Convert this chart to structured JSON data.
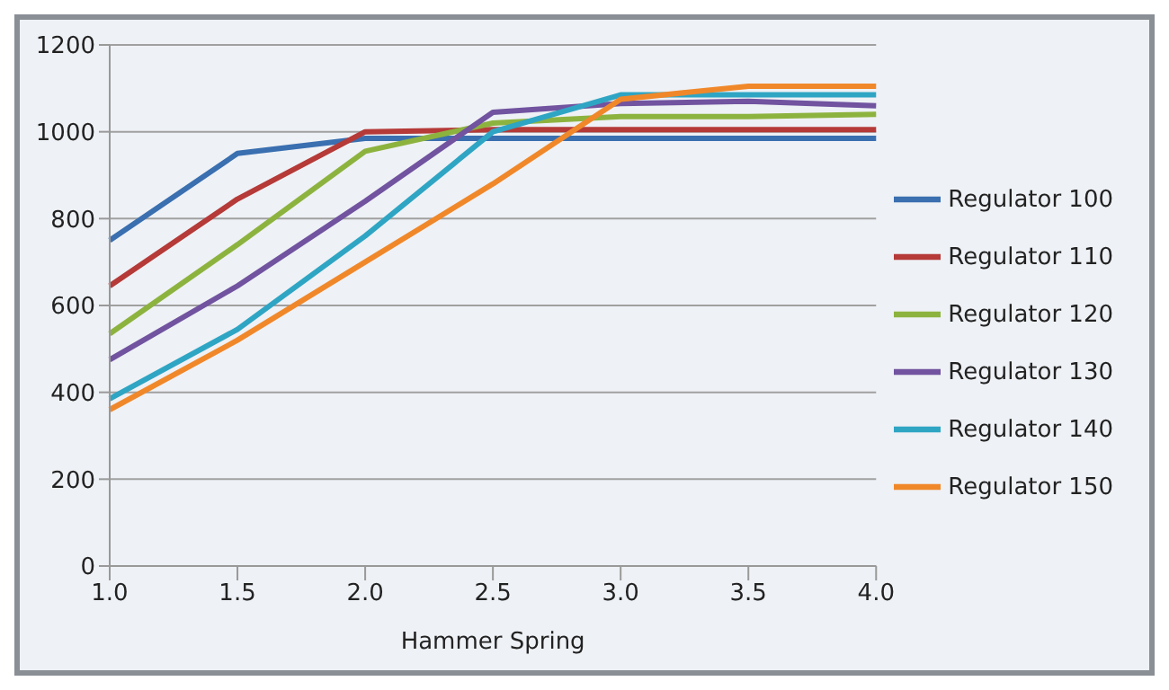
{
  "chart_data": {
    "type": "line",
    "xlabel": "Hammer Spring",
    "categories": [
      "1.0",
      "1.5",
      "2.0",
      "2.5",
      "3.0",
      "3.5",
      "4.0"
    ],
    "series": [
      {
        "name": "Regulator  100",
        "color": "#3a6fb0",
        "values": [
          750,
          950,
          985,
          985,
          985,
          985,
          985
        ]
      },
      {
        "name": "Regulator  110",
        "color": "#b53a38",
        "values": [
          645,
          845,
          1000,
          1005,
          1005,
          1005,
          1005
        ]
      },
      {
        "name": "Regulator  120",
        "color": "#8db33f",
        "values": [
          535,
          740,
          955,
          1020,
          1035,
          1035,
          1040
        ]
      },
      {
        "name": "Regulator  130",
        "color": "#7153a0",
        "values": [
          475,
          645,
          840,
          1045,
          1065,
          1070,
          1060
        ]
      },
      {
        "name": "Regulator  140",
        "color": "#2fa5c4",
        "values": [
          385,
          545,
          760,
          1000,
          1085,
          1085,
          1085
        ]
      },
      {
        "name": "Regulator  150",
        "color": "#f0882a",
        "values": [
          360,
          520,
          700,
          880,
          1075,
          1105,
          1105
        ]
      }
    ],
    "ylim": [
      0,
      1200
    ],
    "yticks": [
      0,
      200,
      400,
      600,
      800,
      1000,
      1200
    ],
    "grid": "y",
    "legend": "right",
    "marker": "none",
    "line_style": "solid"
  }
}
